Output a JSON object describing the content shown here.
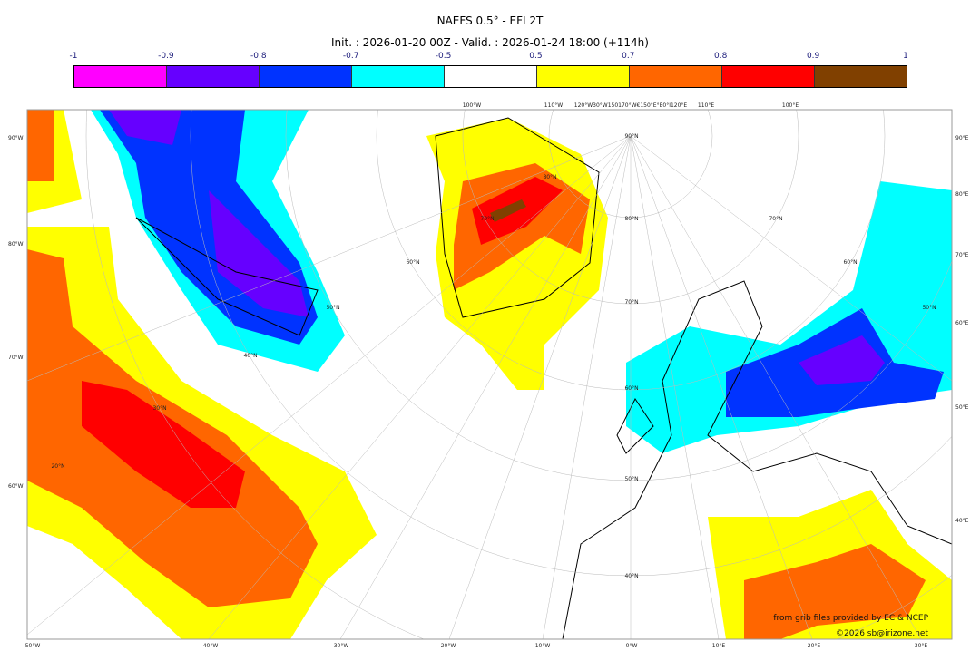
{
  "title": "NAEFS 0.5° - EFI 2T",
  "subtitle": "Init. : 2026-01-20 00Z - Valid. : 2026-01-24 18:00 (+114h)",
  "colorbar": {
    "ticks": [
      "-1",
      "-0.9",
      "-0.8",
      "-0.7",
      "-0.5",
      "0.5",
      "0.7",
      "0.8",
      "0.9",
      "1"
    ],
    "colors": [
      "#ff00ff",
      "#6600ff",
      "#0033ff",
      "#00ffff",
      "#ffffff",
      "#ffff00",
      "#ff6600",
      "#ff0000",
      "#804000"
    ]
  },
  "axes": {
    "bottom": [
      "50°W",
      "40°W",
      "30°W",
      "20°W",
      "10°W",
      "0°W",
      "10°E",
      "20°E",
      "30°E"
    ],
    "left": [
      "90°W",
      "80°W",
      "70°W",
      "60°W"
    ],
    "right": [
      "90°E",
      "80°E",
      "70°E",
      "60°E",
      "50°E",
      "40°E"
    ],
    "top": [
      "100°W",
      "110°W",
      "120°W30°W150170°W€150°E°E0°I120°E",
      "110°E",
      "100°E"
    ],
    "inner": [
      "90°N",
      "80°N",
      "70°N",
      "60°N",
      "50°N",
      "40°N",
      "30°N",
      "20°N",
      "80°N",
      "70°N",
      "60°N",
      "50°N",
      "40°N",
      "70°N",
      "60°N",
      "50°N"
    ]
  },
  "credits": {
    "source": "from grib files provided by EC & NCEP",
    "copyright": "©2026 sb@irizone.net"
  }
}
